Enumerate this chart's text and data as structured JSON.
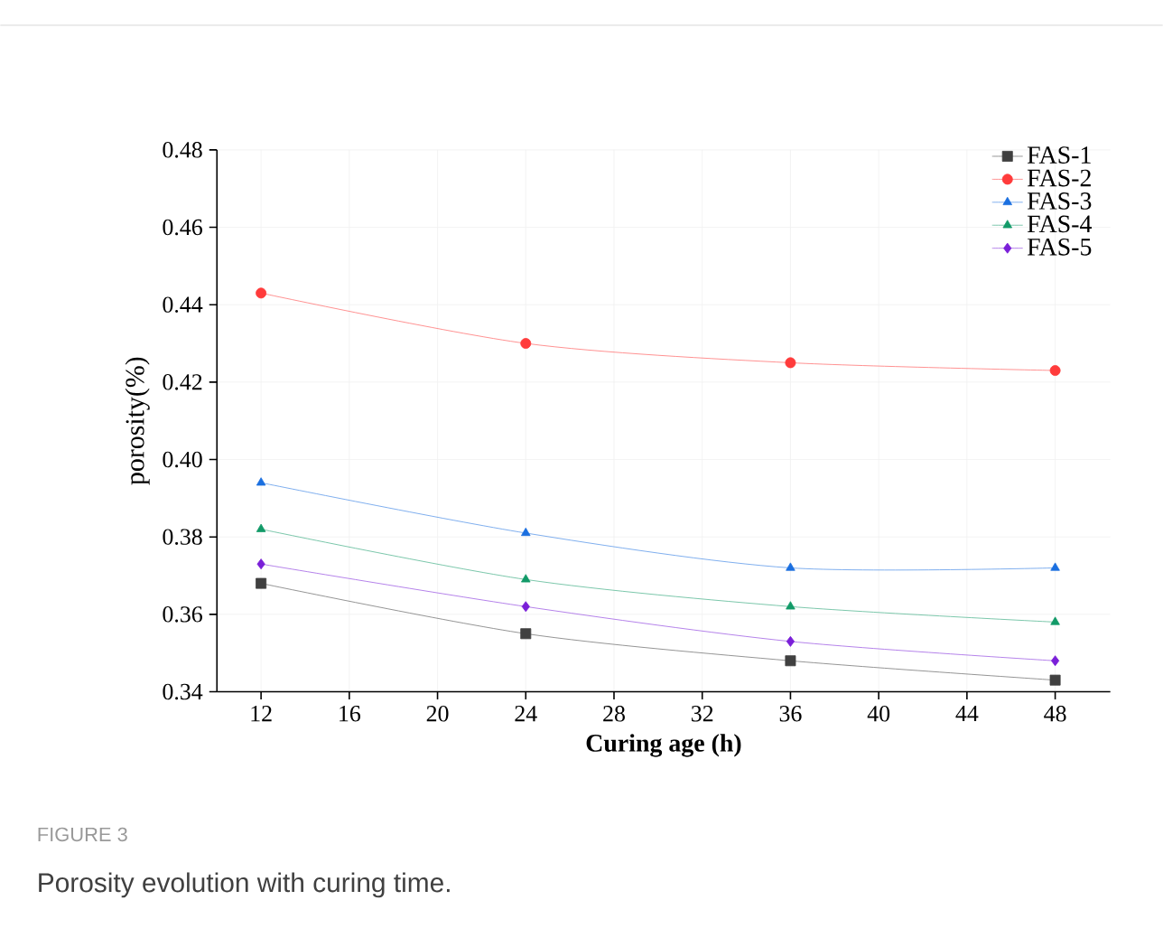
{
  "chart_data": {
    "type": "line",
    "xlabel": "Curing age (h)",
    "ylabel": "porosity(%)",
    "x": [
      12,
      24,
      36,
      48
    ],
    "series": [
      {
        "name": "FAS-1",
        "color": "#404040",
        "marker": "square",
        "values": [
          0.368,
          0.355,
          0.348,
          0.343
        ]
      },
      {
        "name": "FAS-2",
        "color": "#ff3b3b",
        "marker": "circle",
        "values": [
          0.443,
          0.43,
          0.425,
          0.423
        ]
      },
      {
        "name": "FAS-3",
        "color": "#1a6fe0",
        "marker": "triangle",
        "values": [
          0.394,
          0.381,
          0.372,
          0.372
        ]
      },
      {
        "name": "FAS-4",
        "color": "#129a68",
        "marker": "triangle",
        "values": [
          0.382,
          0.369,
          0.362,
          0.358
        ]
      },
      {
        "name": "FAS-5",
        "color": "#7a1fd8",
        "marker": "diamond",
        "values": [
          0.373,
          0.362,
          0.353,
          0.348
        ]
      }
    ],
    "xlim": [
      10,
      50.5
    ],
    "ylim": [
      0.34,
      0.48
    ],
    "xticks": [
      12,
      16,
      20,
      24,
      28,
      32,
      36,
      40,
      44,
      48
    ],
    "yticks": [
      0.34,
      0.36,
      0.38,
      {
        "value": 0.4,
        "label": "0.40"
      },
      0.42,
      0.44,
      0.46,
      0.48
    ],
    "grid": true,
    "legend": "top right",
    "line_style": "solid",
    "annotations": [
      "FIGURE 3",
      "Porosity evolution with curing time."
    ]
  }
}
